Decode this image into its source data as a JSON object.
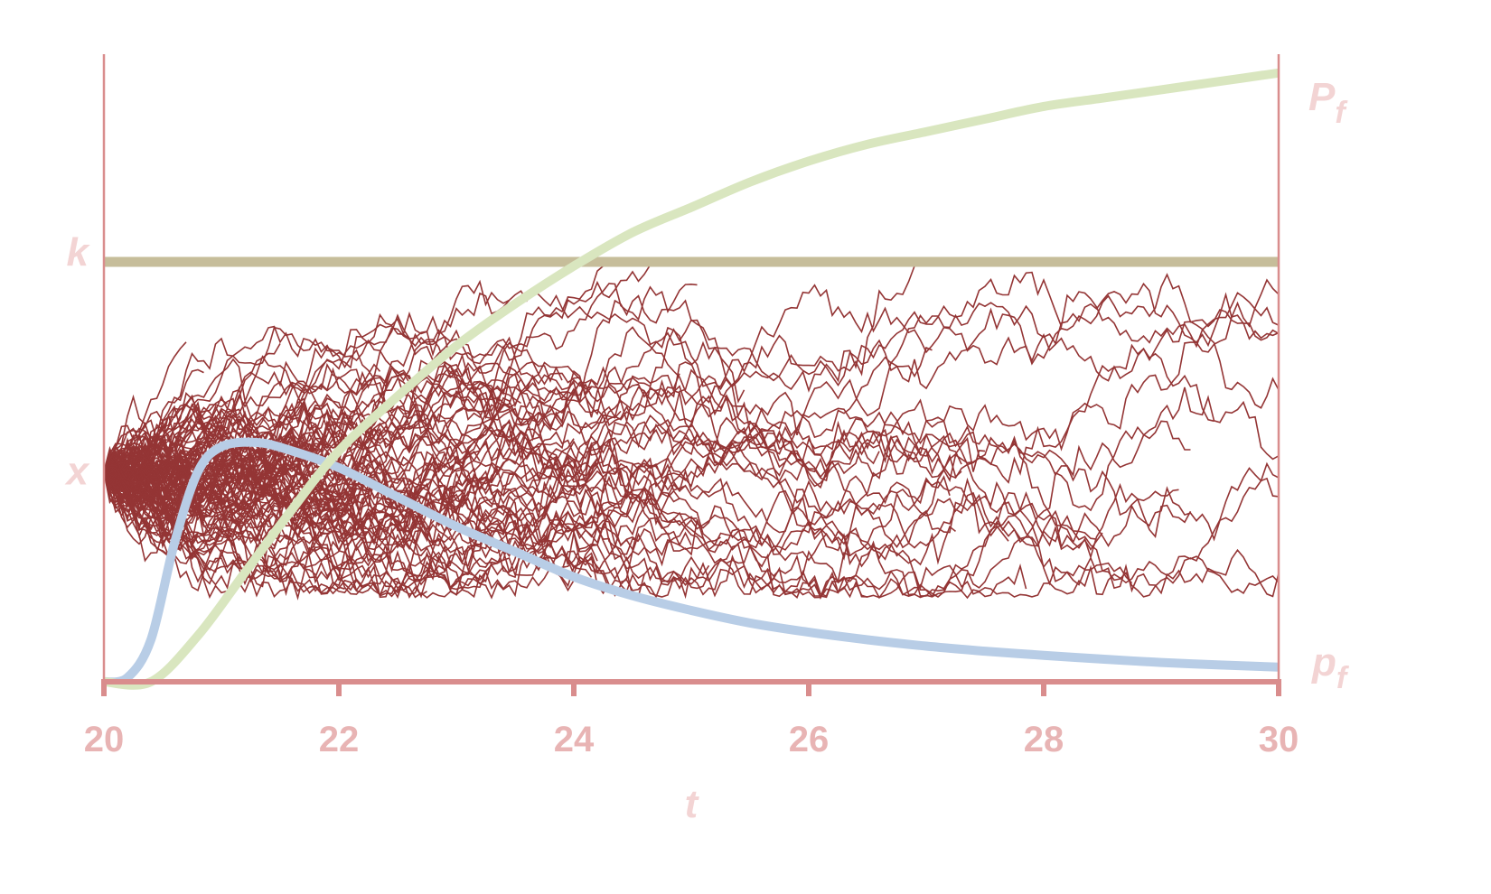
{
  "chart_data": {
    "type": "line",
    "x_domain": [
      20,
      30
    ],
    "x_ticks": [
      "20",
      "22",
      "24",
      "26",
      "28",
      "30"
    ],
    "xlabel": "t",
    "left_labels": {
      "k": "k",
      "x": "x"
    },
    "right_labels": {
      "Pf_main": "P",
      "Pf_sub": "f",
      "pf_main": "p",
      "pf_sub": "f"
    },
    "levels": {
      "x": 0.5,
      "k": 1.0
    },
    "paths": {
      "count": 120,
      "sigma": 0.115
    },
    "series": [
      {
        "key": "Pf",
        "color": "#d9e6bf",
        "x": [
          20.0,
          20.4,
          20.8,
          21.2,
          21.6,
          22.0,
          22.5,
          23.0,
          23.5,
          24.0,
          24.5,
          25.0,
          25.5,
          26.0,
          26.5,
          27.0,
          27.5,
          28.0,
          28.5,
          29.0,
          29.5,
          30.0
        ],
        "y": [
          0.0,
          0.0,
          0.11,
          0.26,
          0.41,
          0.55,
          0.68,
          0.8,
          0.9,
          0.99,
          1.07,
          1.13,
          1.19,
          1.24,
          1.28,
          1.31,
          1.34,
          1.37,
          1.39,
          1.41,
          1.43,
          1.45
        ]
      },
      {
        "key": "pf",
        "color": "#b8cde6",
        "x": [
          20.0,
          20.2,
          20.4,
          20.6,
          20.8,
          21.0,
          21.3,
          21.6,
          22.0,
          22.5,
          23.0,
          23.5,
          24.0,
          24.5,
          25.0,
          25.5,
          26.0,
          26.5,
          27.0,
          27.5,
          28.0,
          28.5,
          29.0,
          29.5,
          30.0
        ],
        "y": [
          0.0,
          0.01,
          0.1,
          0.33,
          0.5,
          0.56,
          0.57,
          0.55,
          0.51,
          0.44,
          0.37,
          0.31,
          0.25,
          0.205,
          0.17,
          0.14,
          0.118,
          0.1,
          0.085,
          0.073,
          0.063,
          0.054,
          0.046,
          0.04,
          0.035
        ]
      },
      {
        "key": "k",
        "color": "#c6bd9a",
        "x": [
          20,
          30
        ],
        "y": [
          1.0,
          1.0
        ]
      }
    ],
    "path_color": "#943535",
    "axis_color": "#d98d8d"
  }
}
